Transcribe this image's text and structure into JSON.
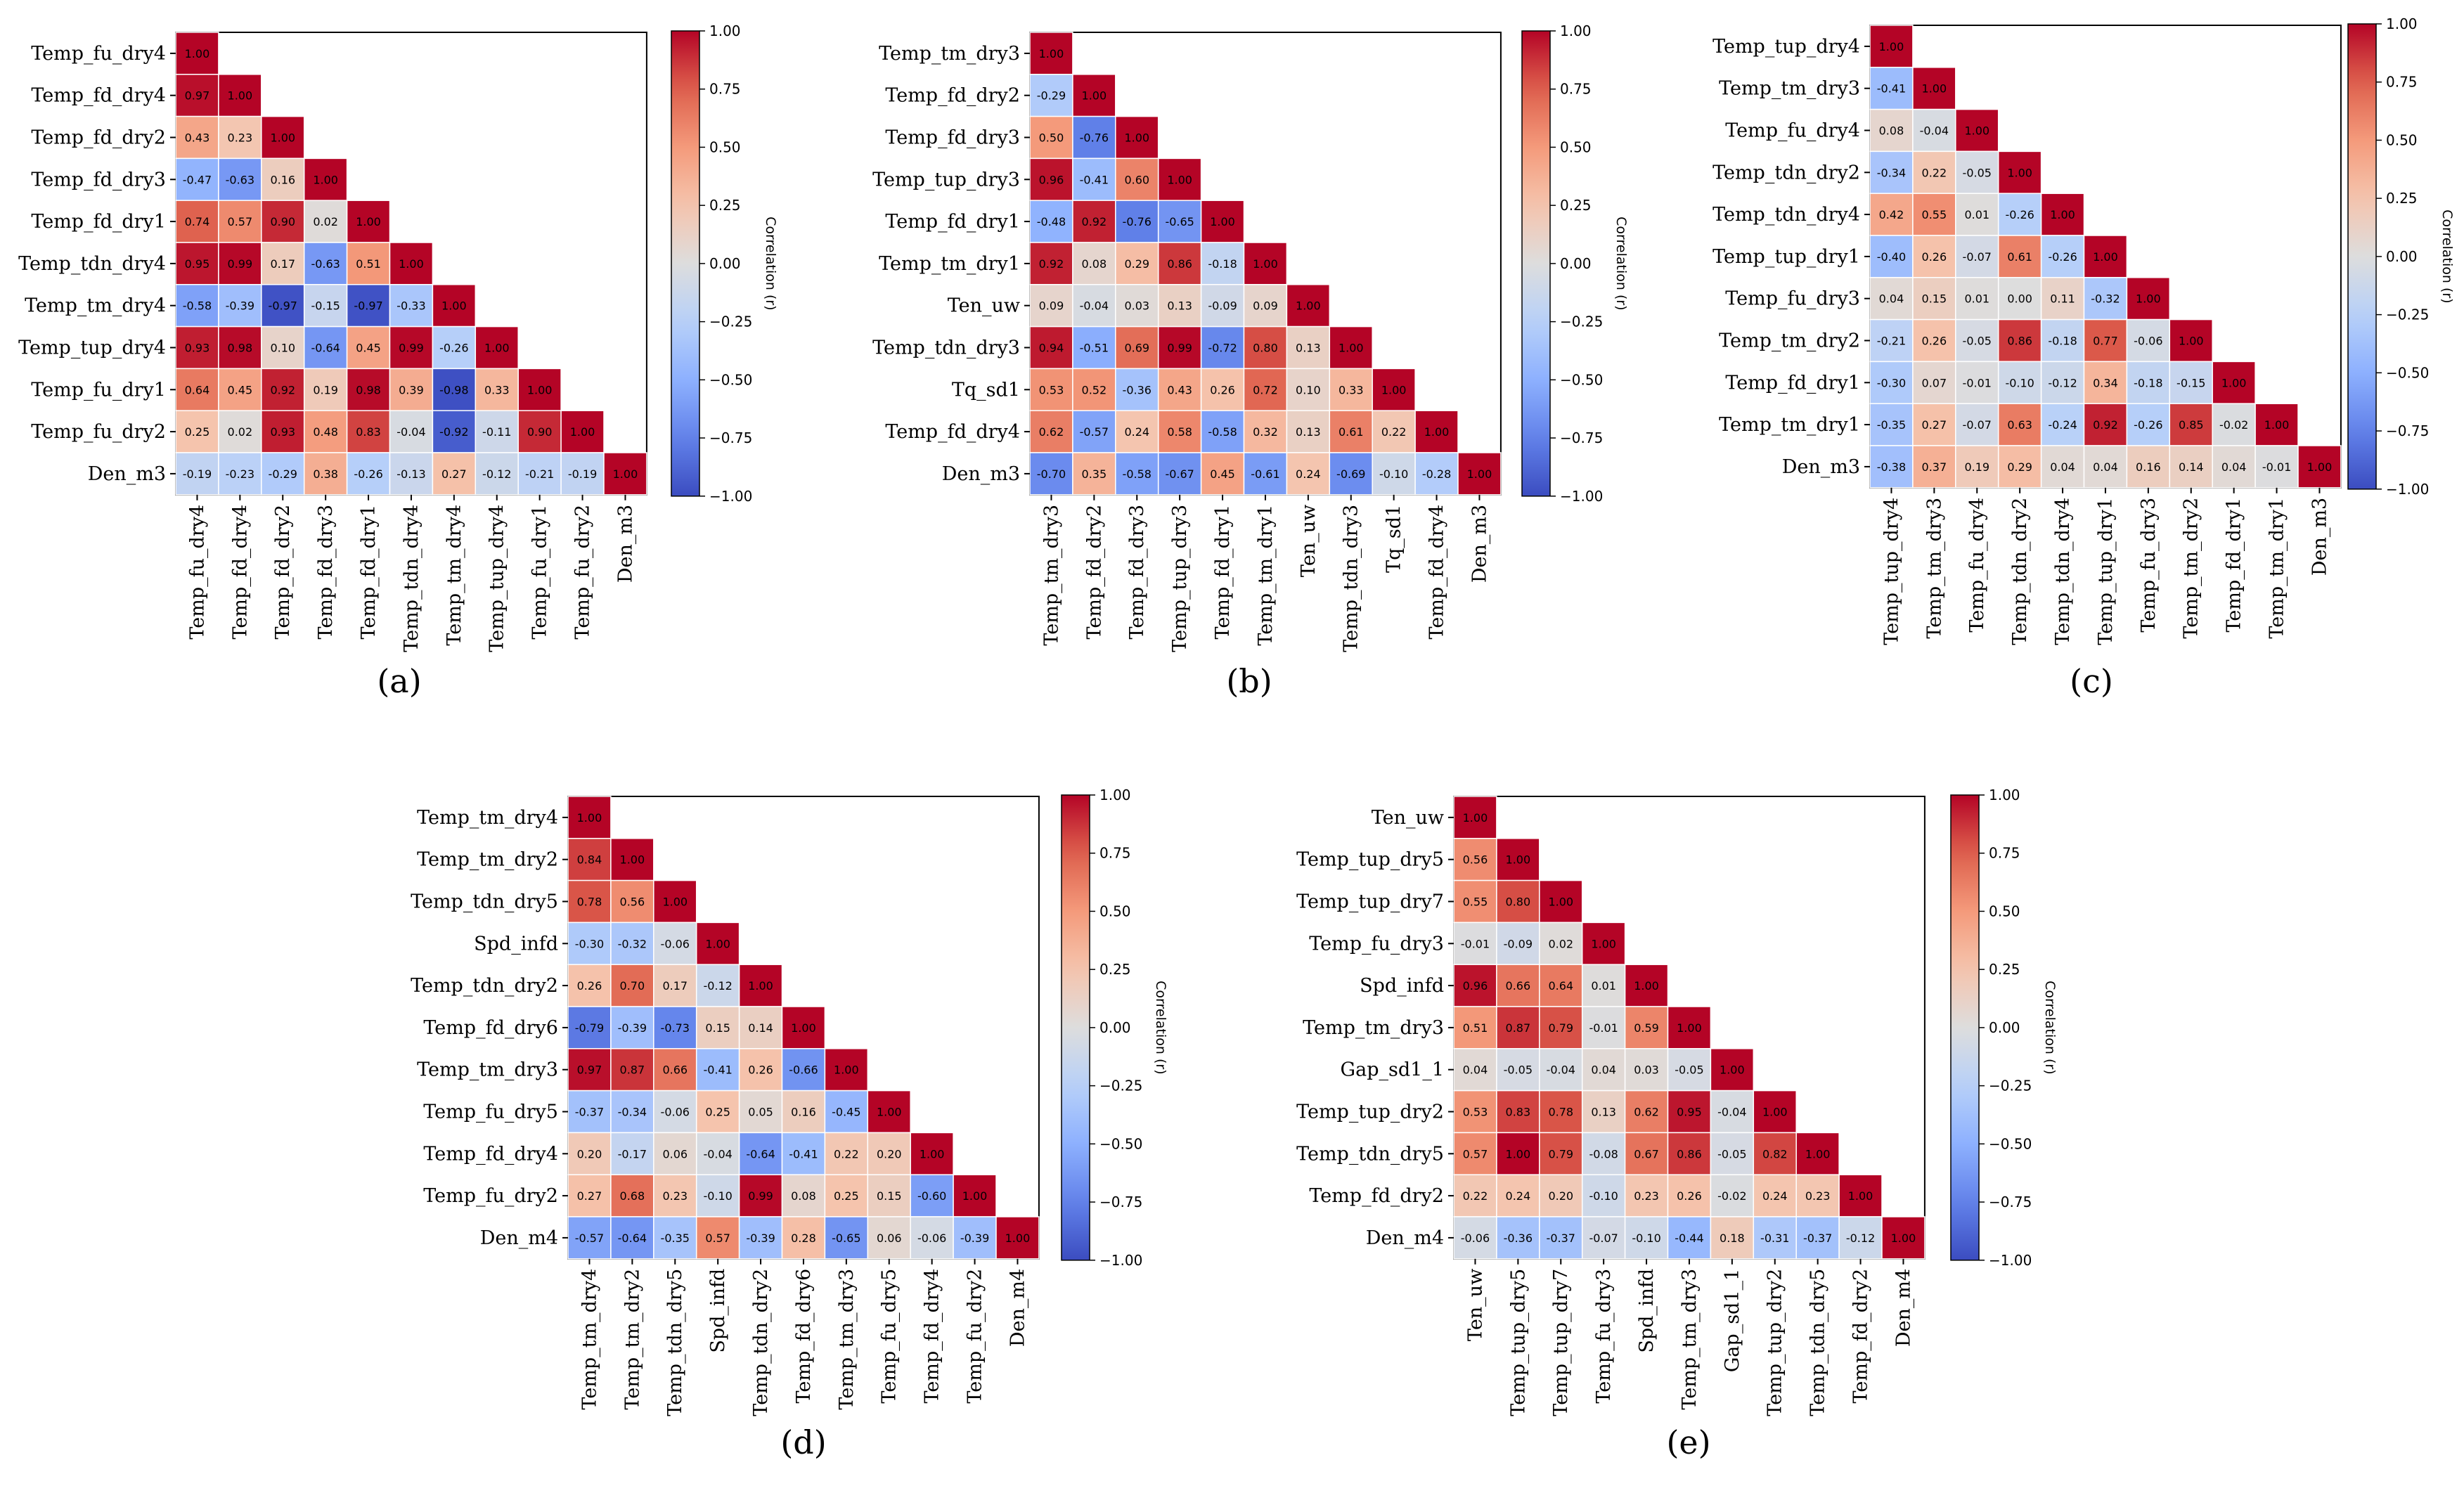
{
  "chart_data": [
    {
      "type": "heatmap",
      "panel_label": "(a)",
      "colorbar_label": "Correlation (r)",
      "colorbar_ticks": [
        "1.00",
        "0.75",
        "0.50",
        "0.25",
        "0.00",
        "−0.25",
        "−0.50",
        "−0.75",
        "−1.00"
      ],
      "vmin": -1,
      "vmax": 1,
      "colormap": "coolwarm",
      "labels": [
        "Temp_fu_dry4",
        "Temp_fd_dry4",
        "Temp_fd_dry2",
        "Temp_fd_dry3",
        "Temp_fd_dry1",
        "Temp_tdn_dry4",
        "Temp_tm_dry4",
        "Temp_tup_dry4",
        "Temp_fu_dry1",
        "Temp_fu_dry2",
        "Den_m3"
      ],
      "values": [
        [
          1.0
        ],
        [
          0.97,
          1.0
        ],
        [
          0.43,
          0.23,
          1.0
        ],
        [
          -0.47,
          -0.63,
          0.16,
          1.0
        ],
        [
          0.74,
          0.57,
          0.9,
          0.02,
          1.0
        ],
        [
          0.95,
          0.99,
          0.17,
          -0.63,
          0.51,
          1.0
        ],
        [
          -0.58,
          -0.39,
          -0.97,
          -0.15,
          -0.97,
          -0.33,
          1.0
        ],
        [
          0.93,
          0.98,
          0.1,
          -0.64,
          0.45,
          0.99,
          -0.26,
          1.0
        ],
        [
          0.64,
          0.45,
          0.92,
          0.19,
          0.98,
          0.39,
          -0.98,
          0.33,
          1.0
        ],
        [
          0.25,
          0.02,
          0.93,
          0.48,
          0.83,
          -0.04,
          -0.92,
          -0.11,
          0.9,
          1.0
        ],
        [
          -0.19,
          -0.23,
          -0.29,
          0.38,
          -0.26,
          -0.13,
          0.27,
          -0.12,
          -0.21,
          -0.19,
          1.0
        ]
      ]
    },
    {
      "type": "heatmap",
      "panel_label": "(b)",
      "colorbar_label": "Correlation (r)",
      "colorbar_ticks": [
        "1.00",
        "0.75",
        "0.50",
        "0.25",
        "0.00",
        "−0.25",
        "−0.50",
        "−0.75",
        "−1.00"
      ],
      "vmin": -1,
      "vmax": 1,
      "colormap": "coolwarm",
      "labels": [
        "Temp_tm_dry3",
        "Temp_fd_dry2",
        "Temp_fd_dry3",
        "Temp_tup_dry3",
        "Temp_fd_dry1",
        "Temp_tm_dry1",
        "Ten_uw",
        "Temp_tdn_dry3",
        "Tq_sd1",
        "Temp_fd_dry4",
        "Den_m3"
      ],
      "values": [
        [
          1.0
        ],
        [
          -0.29,
          1.0
        ],
        [
          0.5,
          -0.76,
          1.0
        ],
        [
          0.96,
          -0.41,
          0.6,
          1.0
        ],
        [
          -0.48,
          0.92,
          -0.76,
          -0.65,
          1.0
        ],
        [
          0.92,
          0.08,
          0.29,
          0.86,
          -0.18,
          1.0
        ],
        [
          0.09,
          -0.04,
          0.03,
          0.13,
          -0.09,
          0.09,
          1.0
        ],
        [
          0.94,
          -0.51,
          0.69,
          0.99,
          -0.72,
          0.8,
          0.13,
          1.0
        ],
        [
          0.53,
          0.52,
          -0.36,
          0.43,
          0.26,
          0.72,
          0.1,
          0.33,
          1.0
        ],
        [
          0.62,
          -0.57,
          0.24,
          0.58,
          -0.58,
          0.32,
          0.13,
          0.61,
          0.22,
          1.0
        ],
        [
          -0.7,
          0.35,
          -0.58,
          -0.67,
          0.45,
          -0.61,
          0.24,
          -0.69,
          -0.1,
          -0.28,
          1.0
        ]
      ]
    },
    {
      "type": "heatmap",
      "panel_label": "(c)",
      "colorbar_label": "Correlation (r)",
      "colorbar_ticks": [
        "1.00",
        "0.75",
        "0.50",
        "0.25",
        "0.00",
        "−0.25",
        "−0.50",
        "−0.75",
        "−1.00"
      ],
      "vmin": -1,
      "vmax": 1,
      "colormap": "coolwarm",
      "labels": [
        "Temp_tup_dry4",
        "Temp_tm_dry3",
        "Temp_fu_dry4",
        "Temp_tdn_dry2",
        "Temp_tdn_dry4",
        "Temp_tup_dry1",
        "Temp_fu_dry3",
        "Temp_tm_dry2",
        "Temp_fd_dry1",
        "Temp_tm_dry1",
        "Den_m3"
      ],
      "values": [
        [
          1.0
        ],
        [
          -0.41,
          1.0
        ],
        [
          0.08,
          -0.04,
          1.0
        ],
        [
          -0.34,
          0.22,
          -0.05,
          1.0
        ],
        [
          0.42,
          0.55,
          0.01,
          -0.26,
          1.0
        ],
        [
          -0.4,
          0.26,
          -0.07,
          0.61,
          -0.26,
          1.0
        ],
        [
          0.04,
          0.15,
          0.01,
          0.0,
          0.11,
          -0.32,
          1.0
        ],
        [
          -0.21,
          0.26,
          -0.05,
          0.86,
          -0.18,
          0.77,
          -0.06,
          1.0
        ],
        [
          -0.3,
          0.07,
          -0.01,
          -0.1,
          -0.12,
          0.34,
          -0.18,
          -0.15,
          1.0
        ],
        [
          -0.35,
          0.27,
          -0.07,
          0.63,
          -0.24,
          0.92,
          -0.26,
          0.85,
          -0.02,
          1.0
        ],
        [
          -0.38,
          0.37,
          0.19,
          0.29,
          0.04,
          0.04,
          0.16,
          0.14,
          0.04,
          -0.01,
          1.0
        ]
      ]
    },
    {
      "type": "heatmap",
      "panel_label": "(d)",
      "colorbar_label": "Correlation (r)",
      "colorbar_ticks": [
        "1.00",
        "0.75",
        "0.50",
        "0.25",
        "0.00",
        "−0.25",
        "−0.50",
        "−0.75",
        "−1.00"
      ],
      "vmin": -1,
      "vmax": 1,
      "colormap": "coolwarm",
      "labels": [
        "Temp_tm_dry4",
        "Temp_tm_dry2",
        "Temp_tdn_dry5",
        "Spd_infd",
        "Temp_tdn_dry2",
        "Temp_fd_dry6",
        "Temp_tm_dry3",
        "Temp_fu_dry5",
        "Temp_fd_dry4",
        "Temp_fu_dry2",
        "Den_m4"
      ],
      "values": [
        [
          1.0
        ],
        [
          0.84,
          1.0
        ],
        [
          0.78,
          0.56,
          1.0
        ],
        [
          -0.3,
          -0.32,
          -0.06,
          1.0
        ],
        [
          0.26,
          0.7,
          0.17,
          -0.12,
          1.0
        ],
        [
          -0.79,
          -0.39,
          -0.73,
          0.15,
          0.14,
          1.0
        ],
        [
          0.97,
          0.87,
          0.66,
          -0.41,
          0.26,
          -0.66,
          1.0
        ],
        [
          -0.37,
          -0.34,
          -0.06,
          0.25,
          0.05,
          0.16,
          -0.45,
          1.0
        ],
        [
          0.2,
          -0.17,
          0.06,
          -0.04,
          -0.64,
          -0.41,
          0.22,
          0.2,
          1.0
        ],
        [
          0.27,
          0.68,
          0.23,
          -0.1,
          0.99,
          0.08,
          0.25,
          0.15,
          -0.6,
          1.0
        ],
        [
          -0.57,
          -0.64,
          -0.35,
          0.57,
          -0.39,
          0.28,
          -0.65,
          0.06,
          -0.06,
          -0.39,
          1.0
        ]
      ]
    },
    {
      "type": "heatmap",
      "panel_label": "(e)",
      "colorbar_label": "Correlation (r)",
      "colorbar_ticks": [
        "1.00",
        "0.75",
        "0.50",
        "0.25",
        "0.00",
        "−0.25",
        "−0.50",
        "−0.75",
        "−1.00"
      ],
      "vmin": -1,
      "vmax": 1,
      "colormap": "coolwarm",
      "labels": [
        "Ten_uw",
        "Temp_tup_dry5",
        "Temp_tup_dry7",
        "Temp_fu_dry3",
        "Spd_infd",
        "Temp_tm_dry3",
        "Gap_sd1_1",
        "Temp_tup_dry2",
        "Temp_tdn_dry5",
        "Temp_fd_dry2",
        "Den_m4"
      ],
      "values": [
        [
          1.0
        ],
        [
          0.56,
          1.0
        ],
        [
          0.55,
          0.8,
          1.0
        ],
        [
          -0.01,
          -0.09,
          0.02,
          1.0
        ],
        [
          0.96,
          0.66,
          0.64,
          0.01,
          1.0
        ],
        [
          0.51,
          0.87,
          0.79,
          -0.01,
          0.59,
          1.0
        ],
        [
          0.04,
          -0.05,
          -0.04,
          0.04,
          0.03,
          -0.05,
          1.0
        ],
        [
          0.53,
          0.83,
          0.78,
          0.13,
          0.62,
          0.95,
          -0.04,
          1.0
        ],
        [
          0.57,
          1.0,
          0.79,
          -0.08,
          0.67,
          0.86,
          -0.05,
          0.82,
          1.0
        ],
        [
          0.22,
          0.24,
          0.2,
          -0.1,
          0.23,
          0.26,
          -0.02,
          0.24,
          0.23,
          1.0
        ],
        [
          -0.06,
          -0.36,
          -0.37,
          -0.07,
          -0.1,
          -0.44,
          0.18,
          -0.31,
          -0.37,
          -0.12,
          1.0
        ]
      ]
    }
  ]
}
